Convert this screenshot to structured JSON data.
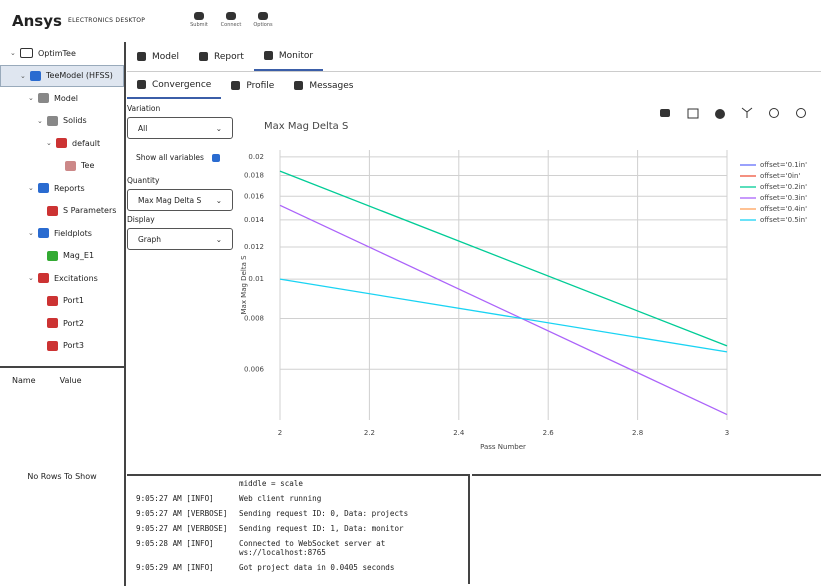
{
  "header": {
    "brand": "Ansys",
    "product": "ELECTRONICS DESKTOP",
    "tools": [
      "Submit",
      "Connect",
      "Options"
    ]
  },
  "tree": [
    "OptimTee",
    "TeeModel (HFSS)",
    "Model",
    "Solids",
    "default",
    "Tee",
    "Reports",
    "S Parameters",
    "Fieldplots",
    "Mag_E1",
    "Excitations",
    "Port1",
    "Port2",
    "Port3"
  ],
  "properties": {
    "columns": [
      "Name",
      "Value"
    ],
    "empty": "No Rows To Show"
  },
  "tabs": [
    "Model",
    "Report",
    "Monitor"
  ],
  "subtabs": [
    "Convergence",
    "Profile",
    "Messages"
  ],
  "controls": {
    "variation": {
      "label": "Variation",
      "value": "All"
    },
    "show_all": "Show all variables",
    "quantity": {
      "label": "Quantity",
      "value": "Max Mag Delta S"
    },
    "display": {
      "label": "Display",
      "value": "Graph"
    }
  },
  "chart_data": {
    "type": "line",
    "title": "Max Mag Delta S",
    "x_label": "Pass Number",
    "y_label": "Max Mag Delta S",
    "x": [
      2,
      3
    ],
    "series": [
      {
        "name": "offset='0.1in'",
        "color": "#636efa",
        "values": [
          null,
          null
        ]
      },
      {
        "name": "offset='0in'",
        "color": "#ef553b",
        "values": [
          null,
          null
        ]
      },
      {
        "name": "offset='0.2in'",
        "color": "#00cc96",
        "values": [
          0.01845,
          0.00685
        ]
      },
      {
        "name": "offset='0.3in'",
        "color": "#ab63fa",
        "values": [
          0.0152,
          0.00464
        ]
      },
      {
        "name": "offset='0.4in'",
        "color": "#ffa15a",
        "values": [
          null,
          null
        ]
      },
      {
        "name": "offset='0.5in'",
        "color": "#19d3f3",
        "values": [
          0.01,
          0.00662
        ]
      }
    ],
    "xlim": [
      2,
      3
    ],
    "xticks": [
      2,
      2.2,
      2.4,
      2.6,
      2.8,
      3
    ],
    "ylim": [
      0.0045,
      0.0208
    ],
    "yticks": [
      0.006,
      0.008,
      0.01,
      0.012,
      0.014,
      0.016,
      0.018,
      0.02
    ],
    "log_y": true,
    "grid": true,
    "legend": "top-right"
  },
  "console": [
    {
      "prefix": "",
      "message": "middle = scale"
    },
    {
      "prefix": "9:05:27 AM [INFO]",
      "message": "Web client running"
    },
    {
      "prefix": "9:05:27 AM [VERBOSE]",
      "message": "Sending request ID: 0, Data: projects"
    },
    {
      "prefix": "9:05:27 AM [VERBOSE]",
      "message": "Sending request ID: 1, Data: monitor"
    },
    {
      "prefix": "9:05:28 AM [INFO]",
      "message": "Connected to WebSocket server at ws://localhost:8765"
    },
    {
      "prefix": "9:05:29 AM [INFO]",
      "message": "Got project data in 0.0405 seconds"
    }
  ]
}
